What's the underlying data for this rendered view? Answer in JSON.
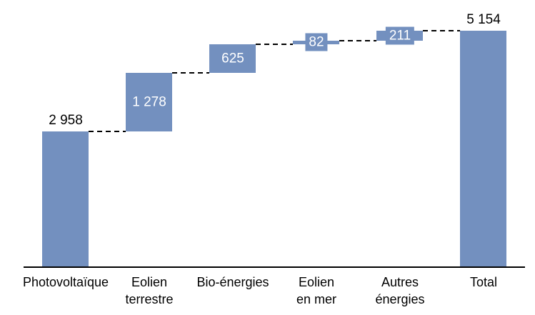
{
  "chart_data": {
    "type": "bar",
    "subtype": "waterfall",
    "title": "",
    "categories": [
      "Photovoltaïque",
      "Eolien terrestre",
      "Bio-énergies",
      "Eolien en mer",
      "Autres énergies",
      "Total"
    ],
    "category_lines": [
      [
        "Photovoltaïque"
      ],
      [
        "Eolien",
        "terrestre"
      ],
      [
        "Bio-énergies"
      ],
      [
        "Eolien",
        "en mer"
      ],
      [
        "Autres",
        "énergies"
      ],
      [
        "Total"
      ]
    ],
    "values": [
      2958,
      1278,
      625,
      82,
      211,
      5154
    ],
    "value_labels": [
      "2 958",
      "1 278",
      "625",
      "82",
      "211",
      "5 154"
    ],
    "is_total": [
      false,
      false,
      false,
      false,
      false,
      true
    ],
    "label_position": [
      "outside",
      "inside",
      "inside",
      "inside",
      "inside",
      "outside"
    ],
    "cumulative_levels": [
      2958,
      4236,
      4861,
      4943,
      5154
    ],
    "ylim": [
      0,
      5154
    ],
    "grid": false,
    "legend": false,
    "y_axis_visible": false,
    "x_axis_visible": true,
    "bar_color": "#7390BF",
    "value_label_colors": [
      "#000000",
      "#FFFFFF",
      "#FFFFFF",
      "#FFFFFF",
      "#FFFFFF",
      "#000000"
    ],
    "connector_style": "dashed",
    "connector_color": "#000000",
    "axis_color": "#000000",
    "text_color": "#000000",
    "background_color": "#FFFFFF"
  }
}
